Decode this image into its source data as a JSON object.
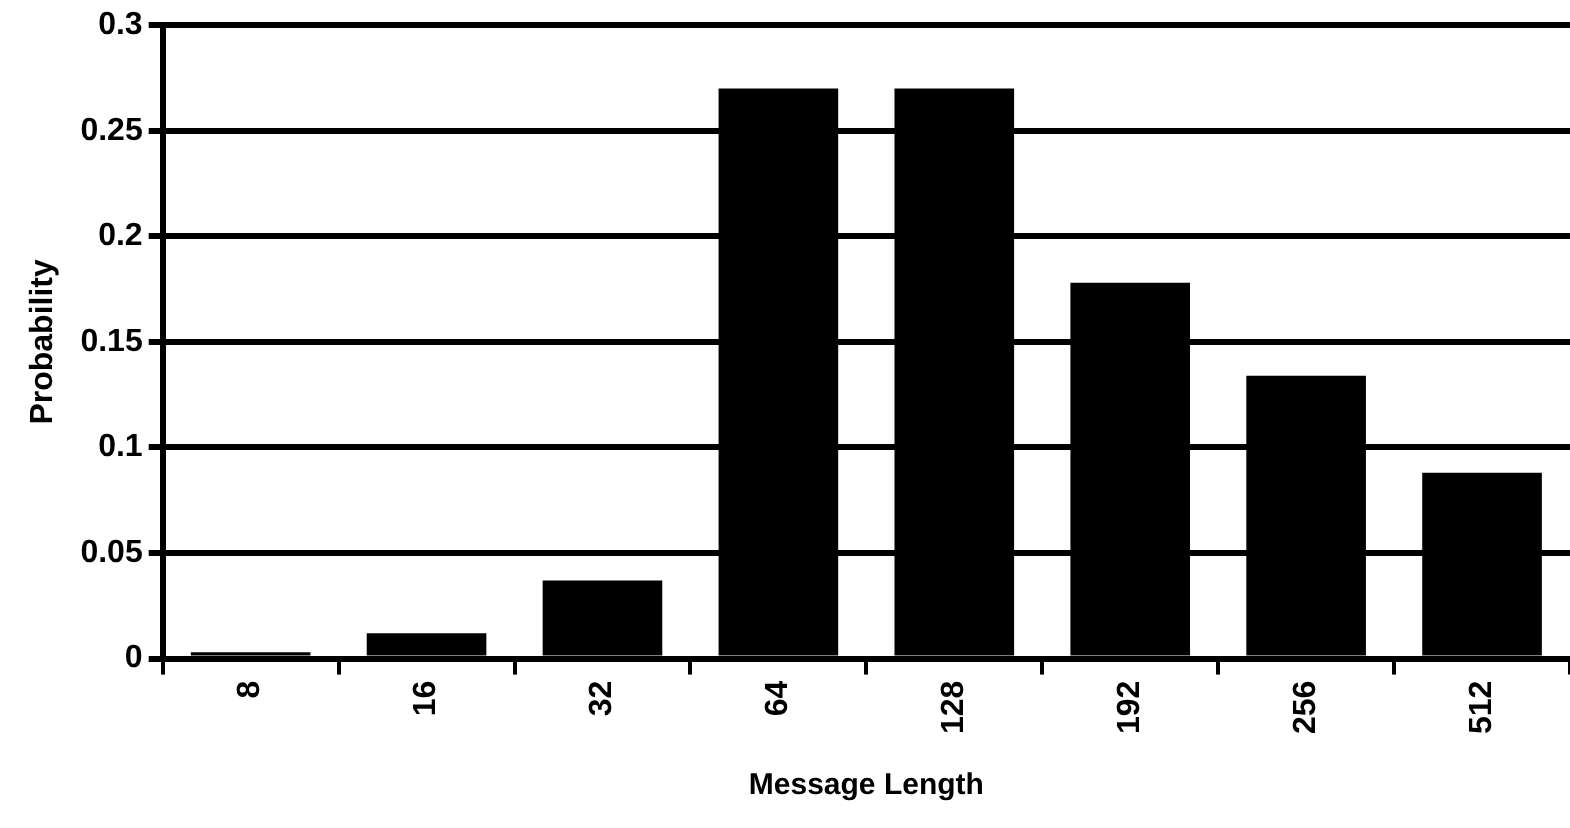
{
  "chart_data": {
    "type": "bar",
    "xlabel": "Message Length",
    "ylabel": "Probability",
    "categories": [
      "8",
      "16",
      "32",
      "64",
      "128",
      "192",
      "256",
      "512"
    ],
    "values": [
      0.003,
      0.012,
      0.037,
      0.27,
      0.27,
      0.178,
      0.134,
      0.088
    ],
    "color": "#000000",
    "ylim": [
      0,
      0.3
    ],
    "yticks": [
      0,
      0.05,
      0.1,
      0.15,
      0.2,
      0.25,
      0.3
    ],
    "grid": "y",
    "legend": false
  }
}
